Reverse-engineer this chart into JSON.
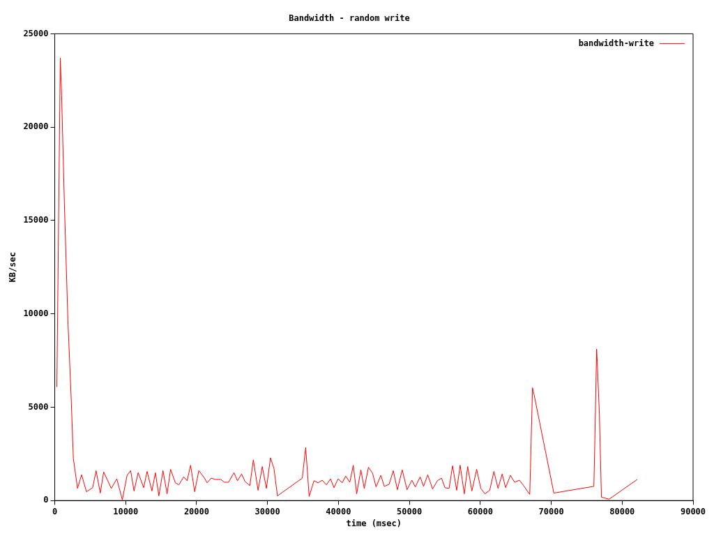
{
  "chart_data": {
    "type": "line",
    "title": "Bandwidth - random write",
    "xlabel": "time (msec)",
    "ylabel": "KB/sec",
    "xlim": [
      0,
      90000
    ],
    "xticks": [
      0,
      10000,
      20000,
      30000,
      40000,
      50000,
      60000,
      70000,
      80000,
      90000
    ],
    "ylim": [
      0,
      25000
    ],
    "yticks": [
      0,
      5000,
      10000,
      15000,
      20000,
      25000
    ],
    "grid": false,
    "legend": "top right",
    "marker": "none",
    "line_style": "solid",
    "series": [
      {
        "name": "bandwidth-write",
        "color": "#ff0000",
        "x": [
          300,
          780,
          970,
          1360,
          1850,
          2330,
          2620,
          3210,
          3790,
          4470,
          5350,
          5830,
          6420,
          6900,
          7970,
          8750,
          9530,
          10200,
          10700,
          11180,
          11760,
          12540,
          13020,
          13700,
          14190,
          14680,
          15260,
          15840,
          16330,
          17010,
          17500,
          18180,
          18660,
          19150,
          19730,
          20310,
          20990,
          21480,
          22060,
          22650,
          23420,
          23910,
          24500,
          25270,
          25760,
          26340,
          26830,
          27510,
          28000,
          28670,
          29260,
          29840,
          30420,
          30910,
          31400,
          34900,
          35380,
          35870,
          36550,
          37130,
          37710,
          38300,
          38880,
          39370,
          39950,
          40530,
          41020,
          41600,
          42090,
          42570,
          43160,
          43640,
          44230,
          44810,
          45300,
          45980,
          46460,
          47140,
          47730,
          48310,
          48990,
          49670,
          50350,
          50840,
          51520,
          52000,
          52590,
          53270,
          53950,
          54530,
          55020,
          55600,
          56090,
          56670,
          57160,
          57740,
          58220,
          58810,
          59490,
          60070,
          60650,
          61330,
          61920,
          62500,
          63080,
          63570,
          64250,
          64830,
          65510,
          66100,
          66970,
          67070,
          67360,
          67560,
          70370,
          76010,
          76100,
          76400,
          76490,
          76790,
          77080,
          78150,
          82130
        ],
        "values": [
          6080,
          23700,
          21700,
          15900,
          9700,
          5350,
          2260,
          650,
          1380,
          470,
          690,
          1600,
          400,
          1530,
          650,
          1160,
          40,
          1350,
          1600,
          510,
          1490,
          690,
          1560,
          510,
          1490,
          250,
          1600,
          360,
          1670,
          950,
          840,
          1270,
          1060,
          1890,
          470,
          1600,
          1270,
          950,
          1200,
          1130,
          1130,
          980,
          980,
          1490,
          1060,
          1420,
          1020,
          800,
          2180,
          550,
          1820,
          650,
          2290,
          1710,
          250,
          1200,
          2840,
          220,
          1060,
          950,
          1090,
          840,
          1160,
          690,
          1160,
          950,
          1310,
          980,
          1890,
          360,
          1640,
          650,
          1780,
          1460,
          730,
          1350,
          760,
          870,
          1600,
          580,
          1640,
          580,
          1090,
          730,
          1270,
          760,
          1380,
          620,
          1060,
          1200,
          690,
          650,
          1860,
          550,
          1890,
          360,
          1820,
          510,
          1670,
          650,
          360,
          550,
          1560,
          650,
          1420,
          690,
          1350,
          980,
          1090,
          800,
          330,
          1710,
          6040,
          5710,
          400,
          760,
          2290,
          8120,
          7430,
          4620,
          180,
          70,
          1130
        ]
      }
    ]
  }
}
